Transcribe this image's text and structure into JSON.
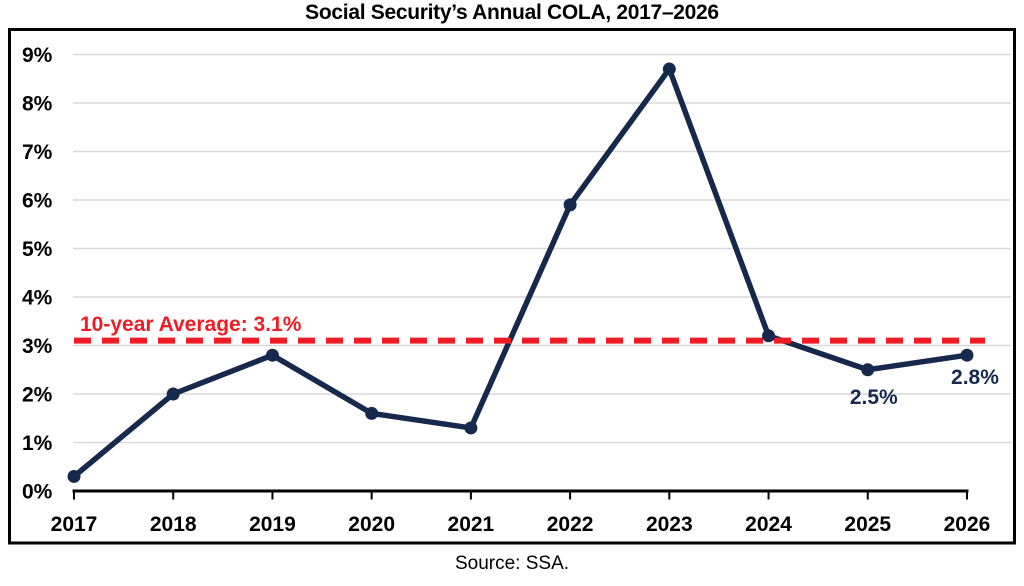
{
  "chart_data": {
    "type": "line",
    "title": "Social Security’s Annual COLA, 2017–2026",
    "source_note": "Source: SSA.",
    "categories": [
      "2017",
      "2018",
      "2019",
      "2020",
      "2021",
      "2022",
      "2023",
      "2024",
      "2025",
      "2026"
    ],
    "series": [
      {
        "name": "Annual COLA",
        "values": [
          0.3,
          2.0,
          2.8,
          1.6,
          1.3,
          5.9,
          8.7,
          3.2,
          2.5,
          2.8
        ]
      }
    ],
    "point_labels": [
      {
        "index": 8,
        "text": "2.5%"
      },
      {
        "index": 9,
        "text": "2.8%"
      }
    ],
    "reference_line": {
      "value": 3.1,
      "label": "10-year Average: 3.1%"
    },
    "y_axis": {
      "min": 0,
      "max": 9,
      "step": 1,
      "tick_labels": [
        "0%",
        "1%",
        "2%",
        "3%",
        "4%",
        "5%",
        "6%",
        "7%",
        "8%",
        "9%"
      ]
    },
    "xlabel": "",
    "ylabel": "",
    "grid": "horizontal",
    "legend": "none",
    "colors": {
      "series_line": "#16294d",
      "reference_line": "#ee1c25",
      "gridline": "#d9d9d9",
      "axis_line": "#000000",
      "axis_text": "#000000",
      "plot_border": "#000000",
      "title_text": "#000000"
    }
  }
}
